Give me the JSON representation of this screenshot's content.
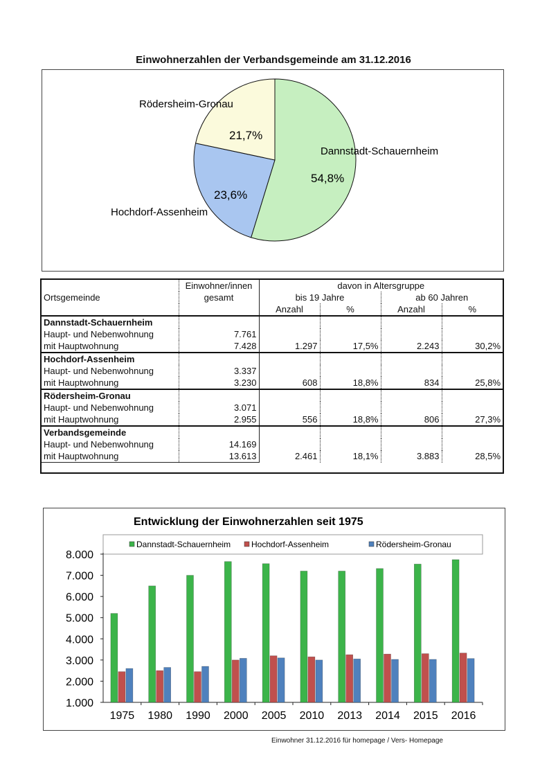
{
  "pie": {
    "title": "Einwohnerzahlen der Verbandsgemeinde am 31.12.2016",
    "chart_data": {
      "type": "pie",
      "slices": [
        {
          "name": "Dannstadt-Schauernheim",
          "value": 54.8,
          "label": "54,8%",
          "color": "#c6efc0"
        },
        {
          "name": "Hochdorf-Assenheim",
          "value": 23.6,
          "label": "23,6%",
          "color": "#a9c6f0"
        },
        {
          "name": "Rödersheim-Gronau",
          "value": 21.7,
          "label": "21,7%",
          "color": "#fbfadc"
        }
      ]
    }
  },
  "table": {
    "headers": {
      "ort": "Ortsgemeinde",
      "einwohner_1": "Einwohner/innen",
      "einwohner_2": "gesamt",
      "alter": "davon in Altersgruppe",
      "bis19": "bis 19 Jahre",
      "ab60": "ab 60 Jahren",
      "anzahl": "Anzahl",
      "pct": "%"
    },
    "groups": [
      {
        "name": "Dannstadt-Schauernheim",
        "neben_label": "Haupt- und Nebenwohnung",
        "neben": "7.761",
        "haupt_label": "mit Hauptwohnung",
        "haupt": "7.428",
        "bis19_anzahl": "1.297",
        "bis19_pct": "17,5%",
        "ab60_anzahl": "2.243",
        "ab60_pct": "30,2%"
      },
      {
        "name": "Hochdorf-Assenheim",
        "neben_label": "Haupt- und Nebenwohnung",
        "neben": "3.337",
        "haupt_label": "mit Hauptwohnung",
        "haupt": "3.230",
        "bis19_anzahl": "608",
        "bis19_pct": "18,8%",
        "ab60_anzahl": "834",
        "ab60_pct": "25,8%"
      },
      {
        "name": "Rödersheim-Gronau",
        "neben_label": "Haupt- und Nebenwohnung",
        "neben": "3.071",
        "haupt_label": "mit Hauptwohnung",
        "haupt": "2.955",
        "bis19_anzahl": "556",
        "bis19_pct": "18,8%",
        "ab60_anzahl": "806",
        "ab60_pct": "27,3%"
      },
      {
        "name": "Verbandsgemeinde",
        "neben_label": "Haupt- und Nebenwohnung",
        "neben": "14.169",
        "haupt_label": "mit Hauptwohnung",
        "haupt": "13.613",
        "bis19_anzahl": "2.461",
        "bis19_pct": "18,1%",
        "ab60_anzahl": "3.883",
        "ab60_pct": "28,5%"
      }
    ]
  },
  "bars": {
    "chart_data": {
      "type": "bar",
      "title": "Entwicklung der Einwohnerzahlen seit 1975",
      "categories": [
        "1975",
        "1980",
        "1990",
        "2000",
        "2005",
        "2010",
        "2013",
        "2014",
        "2015",
        "2016"
      ],
      "y_ticks": [
        "1.000",
        "2.000",
        "3.000",
        "4.000",
        "5.000",
        "6.000",
        "7.000",
        "8.000"
      ],
      "ylim": [
        1000,
        8000
      ],
      "legend_position": "top",
      "grid": false,
      "series": [
        {
          "name": "Dannstadt-Schauernheim",
          "color": "#3cb44a",
          "values": [
            5200,
            6500,
            7000,
            7650,
            7550,
            7200,
            7200,
            7320,
            7530,
            7740
          ]
        },
        {
          "name": "Hochdorf-Assenheim",
          "color": "#c0504d",
          "values": [
            2450,
            2500,
            2450,
            3000,
            3200,
            3150,
            3250,
            3280,
            3300,
            3330
          ]
        },
        {
          "name": "Rödersheim-Gronau",
          "color": "#4f81bd",
          "values": [
            2600,
            2650,
            2700,
            3080,
            3100,
            3000,
            3050,
            3030,
            3030,
            3070
          ]
        }
      ]
    }
  },
  "footer": "Einwohner 31.12.2016 für homepage / Vers- Homepage"
}
